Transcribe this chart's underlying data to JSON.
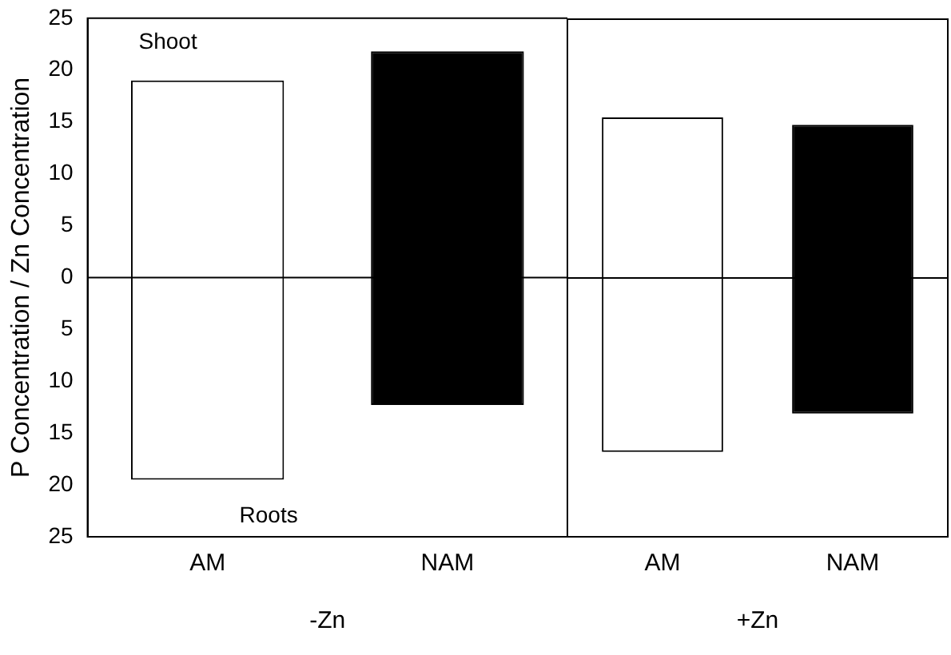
{
  "chart_data": [
    {
      "type": "bar",
      "categories": [
        "AM",
        "NAM"
      ],
      "values": [
        38.5,
        34.1
      ],
      "base": [
        -19.5,
        -12.3
      ],
      "colors": [
        "#ffffff",
        "#000000"
      ],
      "xlabel": "-Zn",
      "ylabel": "P Concentration / Zn Concentration",
      "ylim": [
        -25,
        25
      ],
      "yticks": [
        {
          "value": -25,
          "label": "25"
        },
        {
          "value": -20,
          "label": "20"
        },
        {
          "value": -15,
          "label": "15"
        },
        {
          "value": -10,
          "label": "10"
        },
        {
          "value": -5,
          "label": "5"
        },
        0,
        5,
        10,
        15,
        20,
        25
      ],
      "ref_lines": [
        {
          "axis": "y",
          "value": 0
        }
      ],
      "annotations": [
        "Shoot",
        "Roots"
      ],
      "grid": false,
      "legend": false
    },
    {
      "type": "bar",
      "categories": [
        "AM",
        "NAM"
      ],
      "values": [
        32.3,
        27.9
      ],
      "base": [
        -16.8,
        -13.1
      ],
      "colors": [
        "#ffffff",
        "#000000"
      ],
      "xlabel": "+Zn",
      "ylim": [
        -25,
        25
      ],
      "ref_lines": [
        {
          "axis": "y",
          "value": 0
        }
      ],
      "tick_labels": "x",
      "grid": false,
      "legend": false
    }
  ]
}
